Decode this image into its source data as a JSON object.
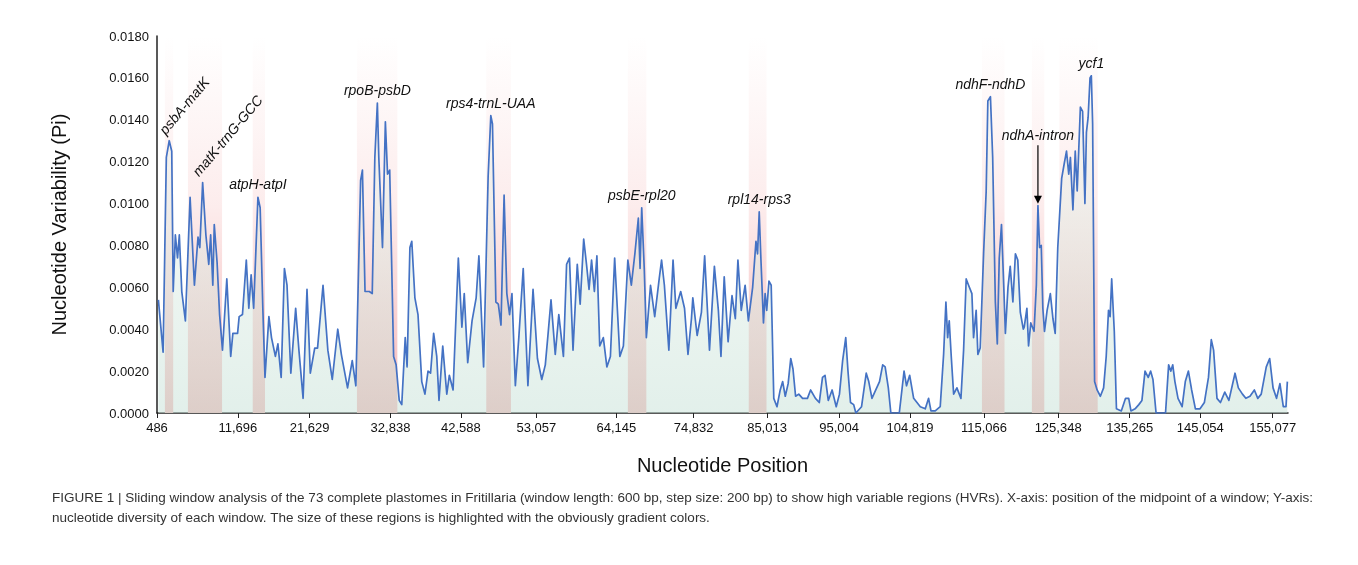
{
  "chart_data": {
    "type": "area",
    "xlabel": "Nucleotide Position",
    "ylabel": "Nucleotide Variability (Pi)",
    "xlim": [
      486,
      157200
    ],
    "xticks": [
      {
        "value": 486,
        "label": "486"
      },
      {
        "value": 11696,
        "label": "11,696"
      },
      {
        "value": 21629,
        "label": "21,629"
      },
      {
        "value": 32838,
        "label": "32,838"
      },
      {
        "value": 42588,
        "label": "42,588"
      },
      {
        "value": 53057,
        "label": "53,057"
      },
      {
        "value": 64145,
        "label": "64,145"
      },
      {
        "value": 74832,
        "label": "74,832"
      },
      {
        "value": 85013,
        "label": "85,013"
      },
      {
        "value": 95004,
        "label": "95,004"
      },
      {
        "value": 104819,
        "label": "104,819"
      },
      {
        "value": 115066,
        "label": "115,066"
      },
      {
        "value": 125348,
        "label": "125,348"
      },
      {
        "value": 135265,
        "label": "135,265"
      },
      {
        "value": 145054,
        "label": "145,054"
      },
      {
        "value": 155077,
        "label": "155,077"
      }
    ],
    "ylim": [
      0,
      0.018
    ],
    "yticks": [
      {
        "value": 0,
        "label": "0.0000"
      },
      {
        "value": 0.002,
        "label": "0.0020"
      },
      {
        "value": 0.004,
        "label": "0.0040"
      },
      {
        "value": 0.006,
        "label": "0.0060"
      },
      {
        "value": 0.008,
        "label": "0.0080"
      },
      {
        "value": 0.01,
        "label": "0.0100"
      },
      {
        "value": 0.012,
        "label": "0.0120"
      },
      {
        "value": 0.014,
        "label": "0.0140"
      },
      {
        "value": 0.016,
        "label": "0.0160"
      },
      {
        "value": 0.018,
        "label": "0.0180"
      }
    ],
    "x": [
      680,
      1330,
      1780,
      2180,
      2530,
      2730,
      3030,
      3330,
      3580,
      3920,
      4420,
      5070,
      5670,
      6170,
      6420,
      6810,
      7260,
      7660,
      7920,
      8220,
      8420,
      8810,
      9160,
      9560,
      10160,
      10700,
      11000,
      11650,
      11870,
      12330,
      12860,
      13210,
      13530,
      13880,
      14470,
      14780,
      15150,
      15450,
      15990,
      16350,
      16890,
      17240,
      17690,
      18140,
      18500,
      19030,
      19700,
      20150,
      20730,
      21270,
      21730,
      22340,
      22730,
      23490,
      24160,
      24770,
      25530,
      26030,
      26890,
      27540,
      28040,
      28700,
      28950,
      29310,
      29910,
      30310,
      30670,
      31020,
      31220,
      31730,
      32130,
      32430,
      32730,
      33270,
      33620,
      34050,
      34400,
      34880,
      35140,
      35530,
      35790,
      36220,
      36650,
      37170,
      37610,
      38040,
      38390,
      38820,
      39250,
      39560,
      40080,
      40640,
      40990,
      41510,
      42240,
      42730,
      43060,
      43540,
      44140,
      44710,
      45090,
      45740,
      46370,
      46740,
      46970,
      47440,
      47780,
      48150,
      48580,
      48960,
      49340,
      49670,
      50140,
      50620,
      51230,
      51880,
      52590,
      53200,
      53800,
      54290,
      54680,
      55080,
      55670,
      56160,
      56800,
      57240,
      57640,
      58130,
      58720,
      59120,
      59610,
      60000,
      60350,
      60700,
      61090,
      61440,
      61830,
      62330,
      62820,
      63310,
      63900,
      64620,
      65110,
      65730,
      66210,
      66700,
      67180,
      67420,
      67650,
      68000,
      68290,
      68870,
      69450,
      70070,
      70400,
      70790,
      71410,
      71990,
      72380,
      73050,
      73580,
      74060,
      74540,
      74730,
      75330,
      75920,
      76370,
      77040,
      77720,
      78270,
      78630,
      79080,
      79620,
      80160,
      80620,
      80980,
      81440,
      81980,
      82430,
      83020,
      83480,
      83700,
      83930,
      84160,
      84520,
      84750,
      84970,
      85280,
      85590,
      85950,
      86390,
      86840,
      87180,
      87540,
      87940,
      88300,
      88610,
      88970,
      89410,
      89940,
      90610,
      91050,
      91720,
      92250,
      92700,
      93050,
      93500,
      94030,
      94600,
      95050,
      95490,
      95920,
      96230,
      96580,
      97020,
      97320,
      98110,
      98760,
      99110,
      99550,
      100080,
      100600,
      101040,
      101380,
      101820,
      102170,
      103340,
      104000,
      104340,
      104780,
      105330,
      106250,
      106940,
      107400,
      107730,
      108320,
      109010,
      109480,
      109800,
      110040,
      110260,
      110540,
      110870,
      111320,
      111880,
      112250,
      112610,
      112940,
      113400,
      113630,
      113990,
      114230,
      114550,
      115020,
      115380,
      115610,
      115970,
      116280,
      116650,
      116920,
      117190,
      117500,
      117810,
      118040,
      118400,
      118710,
      119080,
      119430,
      119760,
      120110,
      120520,
      120650,
      121020,
      121250,
      121560,
      122010,
      122330,
      122550,
      122780,
      123010,
      123230,
      123460,
      123820,
      124270,
      124630,
      124940,
      125300,
      125840,
      126190,
      126510,
      126820,
      127050,
      127400,
      127720,
      127990,
      128430,
      128740,
      129060,
      129270,
      129500,
      129770,
      129950,
      130130,
      130400,
      130750,
      131200,
      131650,
      132010,
      132330,
      132550,
      132770,
      133130,
      133430,
      134100,
      134690,
      135130,
      135440,
      136010,
      136530,
      136960,
      137390,
      137830,
      138170,
      138490,
      138920,
      140230,
      140660,
      140970,
      141230,
      141530,
      141960,
      142530,
      142970,
      143400,
      143850,
      144370,
      145010,
      145610,
      146180,
      146570,
      146890,
      147360,
      147840,
      148440,
      149010,
      149860,
      150320,
      150890,
      151360,
      151930,
      152540,
      153010,
      153490,
      154190,
      154660,
      155130,
      155610,
      156080,
      156550,
      156920,
      157110
    ],
    "series": [
      {
        "color": "#4472c4",
        "values": [
          0.0054,
          0.0029,
          0.0122,
          0.013,
          0.0125,
          0.0058,
          0.0085,
          0.0074,
          0.0085,
          0.0058,
          0.0044,
          0.0103,
          0.0061,
          0.0084,
          0.0079,
          0.011,
          0.0085,
          0.0071,
          0.0085,
          0.0061,
          0.009,
          0.0072,
          0.0047,
          0.003,
          0.0064,
          0.0027,
          0.0038,
          0.0038,
          0.0046,
          0.0047,
          0.0073,
          0.005,
          0.0066,
          0.005,
          0.0103,
          0.0098,
          0.005,
          0.0017,
          0.0046,
          0.0036,
          0.0027,
          0.0033,
          0.0017,
          0.0069,
          0.0061,
          0.0019,
          0.005,
          0.003,
          0.0007,
          0.0059,
          0.0019,
          0.0031,
          0.0031,
          0.0061,
          0.003,
          0.0016,
          0.004,
          0.0028,
          0.0012,
          0.0025,
          0.0013,
          0.0111,
          0.0116,
          0.0058,
          0.0058,
          0.0057,
          0.0122,
          0.0148,
          0.0122,
          0.0079,
          0.0139,
          0.0114,
          0.0116,
          0.0027,
          0.0023,
          0.0006,
          0.0004,
          0.0036,
          0.0022,
          0.0079,
          0.0082,
          0.0055,
          0.0047,
          0.0015,
          0.0009,
          0.002,
          0.0019,
          0.0038,
          0.0027,
          0.0006,
          0.0032,
          0.0009,
          0.0018,
          0.0011,
          0.0074,
          0.0041,
          0.0057,
          0.0024,
          0.0044,
          0.0055,
          0.0075,
          0.0022,
          0.0113,
          0.0142,
          0.0138,
          0.0053,
          0.0052,
          0.0042,
          0.0104,
          0.0057,
          0.0047,
          0.0057,
          0.0013,
          0.0036,
          0.0069,
          0.0013,
          0.0059,
          0.0026,
          0.0016,
          0.0023,
          0.0038,
          0.0054,
          0.0028,
          0.0047,
          0.0027,
          0.0071,
          0.0074,
          0.003,
          0.0071,
          0.0052,
          0.0083,
          0.0071,
          0.0059,
          0.0073,
          0.0058,
          0.0075,
          0.0032,
          0.0036,
          0.0022,
          0.0027,
          0.0074,
          0.0027,
          0.0032,
          0.0073,
          0.0061,
          0.0076,
          0.0093,
          0.0069,
          0.0098,
          0.0069,
          0.0036,
          0.0061,
          0.0046,
          0.0064,
          0.0073,
          0.0061,
          0.003,
          0.0073,
          0.005,
          0.0058,
          0.005,
          0.0028,
          0.0045,
          0.0055,
          0.0037,
          0.0048,
          0.0075,
          0.003,
          0.007,
          0.0049,
          0.0027,
          0.0065,
          0.0034,
          0.0056,
          0.0045,
          0.0073,
          0.0049,
          0.0061,
          0.0044,
          0.006,
          0.0082,
          0.0076,
          0.0096,
          0.0074,
          0.0043,
          0.0057,
          0.0049,
          0.0063,
          0.0061,
          0.0007,
          0.0003,
          0.0011,
          0.0015,
          0.0008,
          0.0014,
          0.0026,
          0.0021,
          0.0008,
          0.0009,
          0.0007,
          0.0007,
          0.0011,
          0.0007,
          0.0005,
          0.0017,
          0.0018,
          0.0006,
          0.0011,
          0.0003,
          0.0009,
          0.0025,
          0.0036,
          0.002,
          0.0005,
          0.0004,
          0,
          0.0003,
          0.0019,
          0.0015,
          0.0007,
          0.0011,
          0.0015,
          0.0023,
          0.0022,
          0.0012,
          0,
          0,
          0.002,
          0.0013,
          0.0018,
          0.0007,
          0.0003,
          0.0002,
          0.0007,
          0.0001,
          0.0001,
          0.0003,
          0.0028,
          0.0053,
          0.0036,
          0.0044,
          0.0027,
          0.0009,
          0.0012,
          0.0007,
          0.003,
          0.0064,
          0.0061,
          0.0057,
          0.0036,
          0.0049,
          0.0028,
          0.0031,
          0.0076,
          0.0106,
          0.0149,
          0.0151,
          0.0122,
          0.0053,
          0.0033,
          0.0074,
          0.009,
          0.0061,
          0.0038,
          0.006,
          0.007,
          0.0053,
          0.0076,
          0.0073,
          0.0048,
          0.004,
          0.0041,
          0.005,
          0.0032,
          0.0043,
          0.0039,
          0.0061,
          0.0099,
          0.0079,
          0.008,
          0.005,
          0.0039,
          0.0049,
          0.0057,
          0.0045,
          0.0038,
          0.0079,
          0.0112,
          0.0119,
          0.0125,
          0.0114,
          0.0122,
          0.0097,
          0.0125,
          0.0106,
          0.0146,
          0.0144,
          0.01,
          0.0134,
          0.0141,
          0.016,
          0.0161,
          0.0138,
          0.0015,
          0.0011,
          0.0008,
          0.0012,
          0.0027,
          0.0049,
          0.0046,
          0.0064,
          0.0039,
          0.0002,
          0.0001,
          0.0007,
          0.0007,
          0.0001,
          0.0002,
          0.0004,
          0.0006,
          0.002,
          0.0017,
          0.002,
          0.0016,
          0,
          0,
          0.0023,
          0.002,
          0.0023,
          0.0015,
          0.0007,
          0.0003,
          0.0015,
          0.002,
          0.0011,
          0.0002,
          0.0002,
          0.0005,
          0.0017,
          0.0035,
          0.003,
          0.0007,
          0.0005,
          0.001,
          0.0006,
          0.0019,
          0.0012,
          0.0009,
          0.0007,
          0.0008,
          0.0011,
          0.0007,
          0.0009,
          0.0022,
          0.0026,
          0.0012,
          0.0007,
          0.0014,
          0.0003,
          0.0003,
          0.0015
        ]
      }
    ],
    "bands": [
      {
        "axis": "x",
        "from": 1580,
        "to": 2730,
        "color": "#f4b4b4"
      },
      {
        "axis": "x",
        "from": 4770,
        "to": 9500,
        "color": "#f4b4b4"
      },
      {
        "axis": "x",
        "from": 13750,
        "to": 15450,
        "color": "#f4b4b4"
      },
      {
        "axis": "x",
        "from": 28190,
        "to": 33790,
        "color": "#f4b4b4"
      },
      {
        "axis": "x",
        "from": 46110,
        "to": 49530,
        "color": "#f4b4b4"
      },
      {
        "axis": "x",
        "from": 65730,
        "to": 68290,
        "color": "#f4b4b4"
      },
      {
        "axis": "x",
        "from": 82480,
        "to": 84940,
        "color": "#f4b4b4"
      },
      {
        "axis": "x",
        "from": 114790,
        "to": 117920,
        "color": "#f4b4b4"
      },
      {
        "axis": "x",
        "from": 121710,
        "to": 123430,
        "color": "#f4b4b4"
      },
      {
        "axis": "x",
        "from": 125520,
        "to": 130830,
        "color": "#f4b4b4"
      }
    ],
    "annotations": [
      {
        "text": "psbA-matK",
        "x": 2180,
        "y": 0.013
      },
      {
        "text": "matK-trnG-GCC",
        "x": 6810,
        "y": 0.011
      },
      {
        "text": "atpH-atpI",
        "x": 14470,
        "y": 0.0103
      },
      {
        "text": "rpoB-psbD",
        "x": 31020,
        "y": 0.0148
      },
      {
        "text": "rps4-trnL-UAA",
        "x": 46740,
        "y": 0.0142
      },
      {
        "text": "psbE-rpl20",
        "x": 67650,
        "y": 0.0098
      },
      {
        "text": "rpl14-rps3",
        "x": 83930,
        "y": 0.0096
      },
      {
        "text": "ndhF-ndhD",
        "x": 115970,
        "y": 0.0151
      },
      {
        "text": "ndhA-intron",
        "x": 122550,
        "y": 0.0099
      },
      {
        "text": "ycf1",
        "x": 129950,
        "y": 0.0161
      },
      "FIGURE 1 | Sliding window analysis of the 73 complete plastomes in Fritillaria (window length: 600 bp, step size: 200 bp) to show high variable regions (HVRs). X-axis: position of the midpoint of a window; Y-axis: nucleotide diversity of each window. The size of these regions is highlighted with the obviously gradient colors."
    ]
  }
}
